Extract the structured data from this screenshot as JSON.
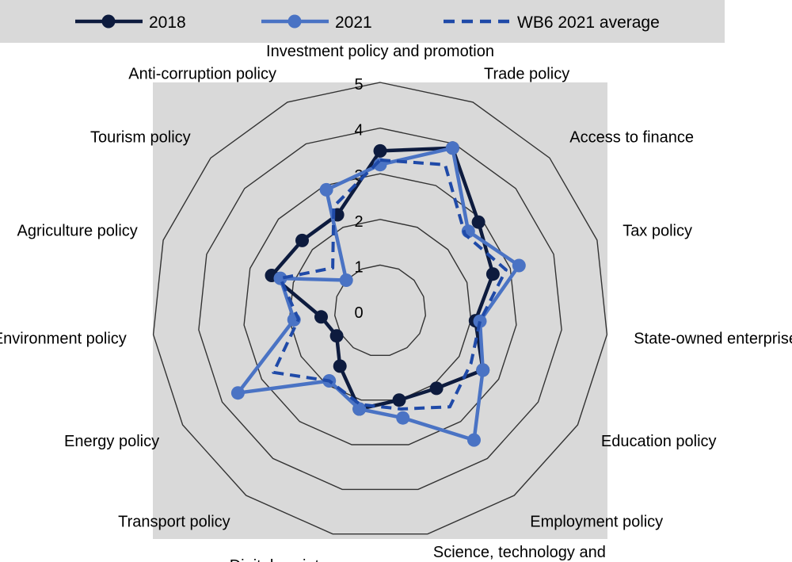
{
  "chart_data": {
    "type": "radar",
    "categories": [
      "Investment policy and promotion",
      "Trade policy",
      "Access to finance",
      "Tax policy",
      "State-owned enterprises",
      "Education policy",
      "Employment policy",
      "Science, technology and innovation",
      "Digital society",
      "Transport policy",
      "Energy policy",
      "Environment policy",
      "Agriculture policy",
      "Tourism policy",
      "Anti-corruption policy"
    ],
    "rlim": [
      0,
      5
    ],
    "ticks": [
      "0",
      "1",
      "2",
      "3",
      "4",
      "5"
    ],
    "legend_position": "top",
    "series": [
      {
        "name": "2018",
        "color": "#0d1b3e",
        "style": "solid-marker",
        "values": [
          3.5,
          3.9,
          2.9,
          2.6,
          2.1,
          2.6,
          2.1,
          2.0,
          2.2,
          1.5,
          1.1,
          1.3,
          2.5,
          2.3,
          2.3
        ]
      },
      {
        "name": "2021",
        "color": "#4a73c4",
        "style": "solid-marker",
        "values": [
          3.2,
          3.9,
          2.6,
          3.2,
          2.2,
          2.6,
          3.5,
          2.4,
          2.2,
          1.9,
          3.6,
          1.9,
          2.3,
          1.0,
          2.9
        ]
      },
      {
        "name": "WB6 2021 average",
        "color": "#1f4aa8",
        "style": "dashed",
        "values": [
          3.3,
          3.5,
          2.5,
          2.9,
          2.2,
          2.3,
          2.6,
          2.2,
          2.1,
          1.9,
          2.7,
          1.8,
          2.3,
          1.4,
          2.5
        ]
      }
    ]
  }
}
